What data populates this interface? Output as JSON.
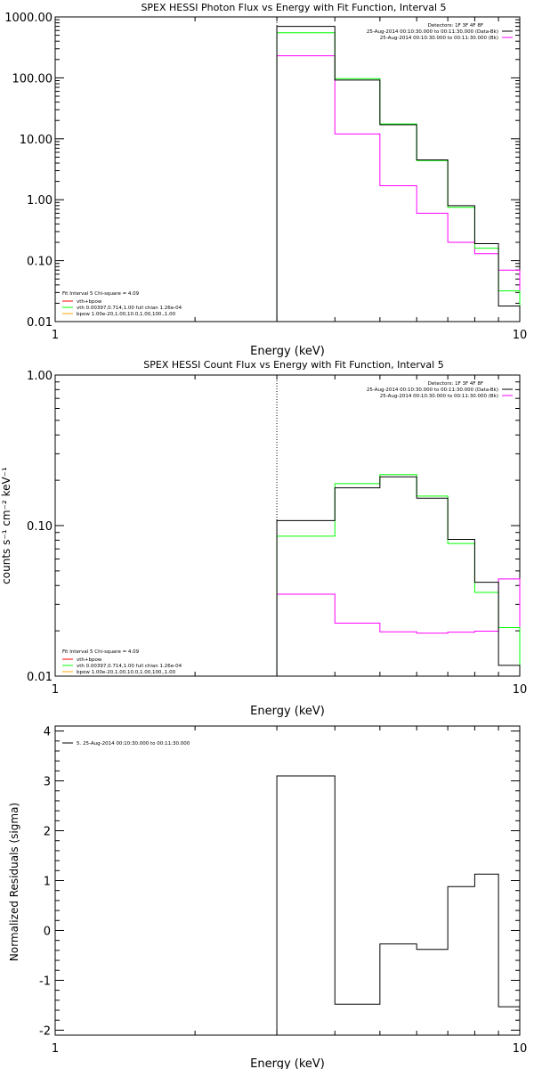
{
  "colors": {
    "data": "#000000",
    "background": "#ff00ff",
    "model_total": "#00ff00",
    "model_vth": "#ff0000",
    "model_bpow": "#ffa500"
  },
  "panels": {
    "photon": {
      "title": "SPEX HESSI Photon Flux vs Energy with Fit Function, Interval 5",
      "xlabel": "Energy (keV)",
      "ylabel": "",
      "x_ticks": [
        "1",
        "10"
      ],
      "y_ticks": [
        "0.01",
        "0.10",
        "1.00",
        "10.00",
        "100.00",
        "1000.00"
      ],
      "legend": {
        "detectors": "Detectors: 1F 3F 4F 8F",
        "data_interval": "25-Aug-2014 00:10:30.000 to 00:11:30.000 (Data-Bk)",
        "bk_interval": "25-Aug-2014 00:10:30.000 to 00:11:30.000 (Bk)"
      },
      "fit_legend": {
        "line1": "Fit Interval 5   Chi-square = 4.09",
        "line2": "vth+bpow",
        "line3": "vth 0.00397,0.714,1.00   full chian 1.26e-04",
        "line4": "bpow 1.00e-20,1.00,10.0,1.00,100.,1.00"
      }
    },
    "count": {
      "title": "SPEX HESSI Count Flux vs Energy with Fit Function, Interval 5",
      "xlabel": "Energy (keV)",
      "ylabel": "counts s⁻¹ cm⁻² keV⁻¹",
      "x_ticks": [
        "1",
        "10"
      ],
      "y_ticks": [
        "0.01",
        "0.10",
        "1.00"
      ],
      "legend": {
        "detectors": "Detectors: 1F 3F 4F 8F",
        "data_interval": "25-Aug-2014 00:10:30.000 to 00:11:30.000 (Data-Bk)",
        "bk_interval": "25-Aug-2014 00:10:30.000 to 00:11:30.000 (Bk)"
      },
      "fit_legend": {
        "line1": "Fit Interval 5   Chi-square = 4.09",
        "line2": "vth+bpow",
        "line3": "vth 0.00397,0.714,1.00   full chian 1.26e-04",
        "line4": "bpow 1.00e-20,1.00,10.0,1.00,100.,1.00"
      }
    },
    "resid": {
      "title": "",
      "xlabel": "Energy (keV)",
      "ylabel": "Normalized Residuals (sigma)",
      "x_ticks": [
        "1",
        "10"
      ],
      "y_ticks": [
        "-2",
        "-1",
        "0",
        "1",
        "2",
        "3",
        "4"
      ],
      "legend": {
        "line1": "5. 25-Aug-2014 00:10:30.000 to 00:11:30.000"
      }
    }
  },
  "chart_data": [
    {
      "type": "line",
      "title": "SPEX HESSI Photon Flux vs Energy with Fit Function, Interval 5",
      "xlabel": "Energy (keV)",
      "ylabel": "",
      "xscale": "log",
      "yscale": "log",
      "xlim": [
        1,
        10
      ],
      "ylim": [
        0.01,
        1000
      ],
      "bin_edges": [
        3,
        4,
        5,
        6,
        7,
        8,
        9,
        10
      ],
      "series": [
        {
          "name": "Data-Bk",
          "values": [
            700,
            92,
            17,
            4.5,
            0.8,
            0.19,
            0.018
          ]
        },
        {
          "name": "Bk",
          "values": [
            230,
            12,
            1.7,
            0.6,
            0.2,
            0.13,
            0.07
          ]
        },
        {
          "name": "vth+bpow",
          "values": [
            550,
            97,
            17.5,
            4.4,
            0.75,
            0.16,
            0.032
          ]
        }
      ],
      "legend_position": "top-right"
    },
    {
      "type": "line",
      "title": "SPEX HESSI Count Flux vs Energy with Fit Function, Interval 5",
      "xlabel": "Energy (keV)",
      "ylabel": "counts s⁻¹ cm⁻² keV⁻¹",
      "xscale": "log",
      "yscale": "log",
      "xlim": [
        1,
        10
      ],
      "ylim": [
        0.01,
        1.0
      ],
      "bin_edges": [
        3,
        4,
        5,
        6,
        7,
        8,
        9,
        10
      ],
      "series": [
        {
          "name": "Data-Bk",
          "values": [
            0.108,
            0.178,
            0.211,
            0.152,
            0.081,
            0.042,
            0.0118
          ]
        },
        {
          "name": "Bk",
          "values": [
            0.035,
            0.0225,
            0.0197,
            0.0193,
            0.0196,
            0.0199,
            0.0442
          ]
        },
        {
          "name": "vth+bpow",
          "values": [
            0.085,
            0.19,
            0.218,
            0.157,
            0.076,
            0.036,
            0.021
          ]
        }
      ],
      "legend_position": "top-right"
    },
    {
      "type": "line",
      "title": "",
      "xlabel": "Energy (keV)",
      "ylabel": "Normalized Residuals (sigma)",
      "xscale": "log",
      "yscale": "linear",
      "xlim": [
        1,
        10
      ],
      "ylim": [
        -2.1,
        4.1
      ],
      "bin_edges": [
        3,
        4,
        5,
        6,
        7,
        8,
        9,
        10
      ],
      "series": [
        {
          "name": "5. 25-Aug-2014 00:10:30.000 to 00:11:30.000",
          "values": [
            3.1,
            -1.48,
            -0.27,
            -0.38,
            0.88,
            1.13,
            -1.53
          ]
        }
      ],
      "legend_position": "top-left"
    }
  ]
}
